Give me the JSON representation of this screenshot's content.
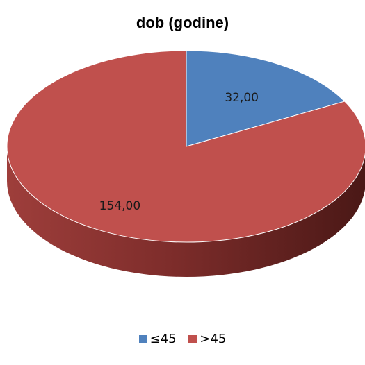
{
  "chart_data": {
    "type": "pie",
    "title": "dob (godine)",
    "categories": [
      "≤45",
      ">45"
    ],
    "values": [
      32,
      154
    ],
    "data_labels": [
      "32,00",
      "154,00"
    ],
    "colors": [
      "#4f81bd",
      "#c0504d"
    ],
    "legend_position": "bottom",
    "three_d": true
  }
}
